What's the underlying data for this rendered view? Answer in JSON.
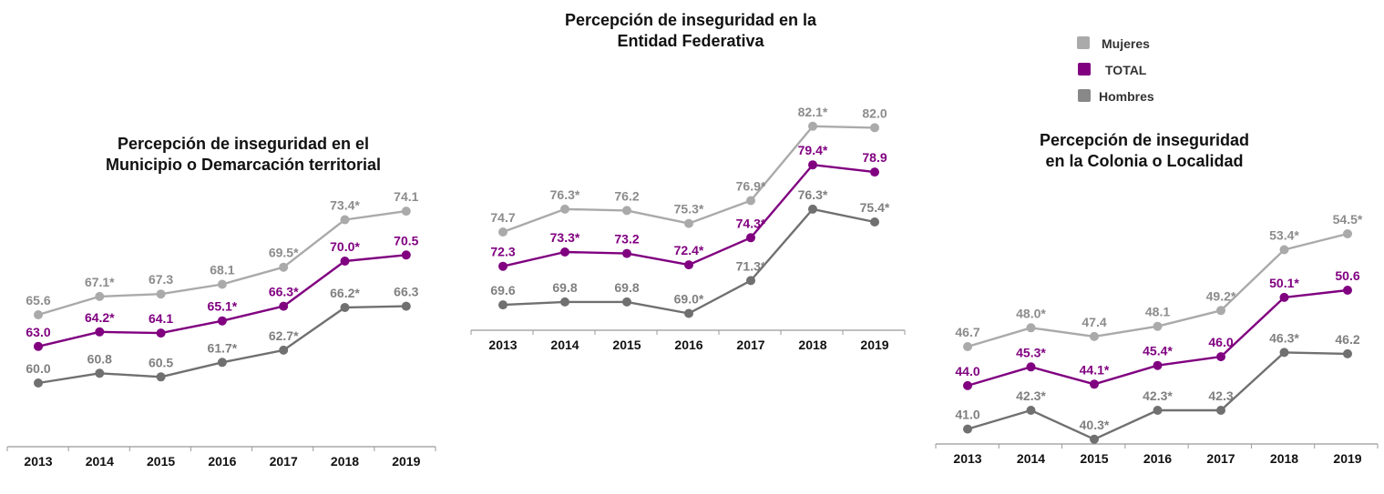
{
  "legend": [
    {
      "name": "Mujeres",
      "color": "#aaaaaa"
    },
    {
      "name": "TOTAL",
      "color": "#800080"
    },
    {
      "name": "Hombres",
      "color": "#777777"
    }
  ],
  "chart_data": [
    {
      "type": "line",
      "title": [
        "Percepción de inseguridad en el",
        "Municipio o Demarcación territorial"
      ],
      "xlabel": "",
      "ylabel": "",
      "categories": [
        "2013",
        "2014",
        "2015",
        "2016",
        "2017",
        "2018",
        "2019"
      ],
      "grid": false,
      "series": [
        {
          "name": "Mujeres",
          "color": "#aaaaaa",
          "label_color": "#8c8c8c",
          "values": [
            65.6,
            67.1,
            67.3,
            68.1,
            69.5,
            73.4,
            74.1
          ],
          "labels": [
            "65.6",
            "67.1*",
            "67.3",
            "68.1",
            "69.5*",
            "73.4*",
            "74.1"
          ]
        },
        {
          "name": "TOTAL",
          "color": "#800080",
          "label_color": "#800080",
          "values": [
            63.0,
            64.2,
            64.1,
            65.1,
            66.3,
            70.0,
            70.5
          ],
          "labels": [
            "63.0",
            "64.2*",
            "64.1",
            "65.1*",
            "66.3*",
            "70.0*",
            "70.5"
          ]
        },
        {
          "name": "Hombres",
          "color": "#707070",
          "label_color": "#808080",
          "values": [
            60.0,
            60.8,
            60.5,
            61.7,
            62.7,
            66.2,
            66.3
          ],
          "labels": [
            "60.0",
            "60.8",
            "60.5",
            "61.7*",
            "62.7*",
            "66.2*",
            "66.3"
          ]
        }
      ]
    },
    {
      "type": "line",
      "title": [
        "Percepción de inseguridad en la",
        "Entidad Federativa"
      ],
      "xlabel": "",
      "ylabel": "",
      "categories": [
        "2013",
        "2014",
        "2015",
        "2016",
        "2017",
        "2018",
        "2019"
      ],
      "grid": false,
      "series": [
        {
          "name": "Mujeres",
          "color": "#aaaaaa",
          "label_color": "#8c8c8c",
          "values": [
            74.7,
            76.3,
            76.2,
            75.3,
            76.9,
            82.1,
            82.0
          ],
          "labels": [
            "74.7",
            "76.3*",
            "76.2",
            "75.3*",
            "76.9*",
            "82.1*",
            "82.0"
          ]
        },
        {
          "name": "TOTAL",
          "color": "#800080",
          "label_color": "#800080",
          "values": [
            72.3,
            73.3,
            73.2,
            72.4,
            74.3,
            79.4,
            78.9
          ],
          "labels": [
            "72.3",
            "73.3*",
            "73.2",
            "72.4*",
            "74.3*",
            "79.4*",
            "78.9"
          ]
        },
        {
          "name": "Hombres",
          "color": "#707070",
          "label_color": "#808080",
          "values": [
            69.6,
            69.8,
            69.8,
            69.0,
            71.3,
            76.3,
            75.4
          ],
          "labels": [
            "69.6",
            "69.8",
            "69.8",
            "69.0*",
            "71.3*",
            "76.3*",
            "75.4*"
          ]
        }
      ]
    },
    {
      "type": "line",
      "title": [
        "Percepción de inseguridad",
        "en la Colonia o Localidad"
      ],
      "xlabel": "",
      "ylabel": "",
      "categories": [
        "2013",
        "2014",
        "2015",
        "2016",
        "2017",
        "2018",
        "2019"
      ],
      "grid": false,
      "series": [
        {
          "name": "Mujeres",
          "color": "#aaaaaa",
          "label_color": "#8c8c8c",
          "values": [
            46.7,
            48.0,
            47.4,
            48.1,
            49.2,
            53.4,
            54.5
          ],
          "labels": [
            "46.7",
            "48.0*",
            "47.4",
            "48.1",
            "49.2*",
            "53.4*",
            "54.5*"
          ]
        },
        {
          "name": "TOTAL",
          "color": "#800080",
          "label_color": "#800080",
          "values": [
            44.0,
            45.3,
            44.1,
            45.4,
            46.0,
            50.1,
            50.6
          ],
          "labels": [
            "44.0",
            "45.3*",
            "44.1*",
            "45.4*",
            "46.0",
            "50.1*",
            "50.6"
          ]
        },
        {
          "name": "Hombres",
          "color": "#707070",
          "label_color": "#808080",
          "values": [
            41.0,
            42.3,
            40.3,
            42.3,
            42.3,
            46.3,
            46.2
          ],
          "labels": [
            "41.0",
            "42.3*",
            "40.3*",
            "42.3*",
            "42.3",
            "46.3*",
            "46.2"
          ]
        }
      ]
    }
  ]
}
